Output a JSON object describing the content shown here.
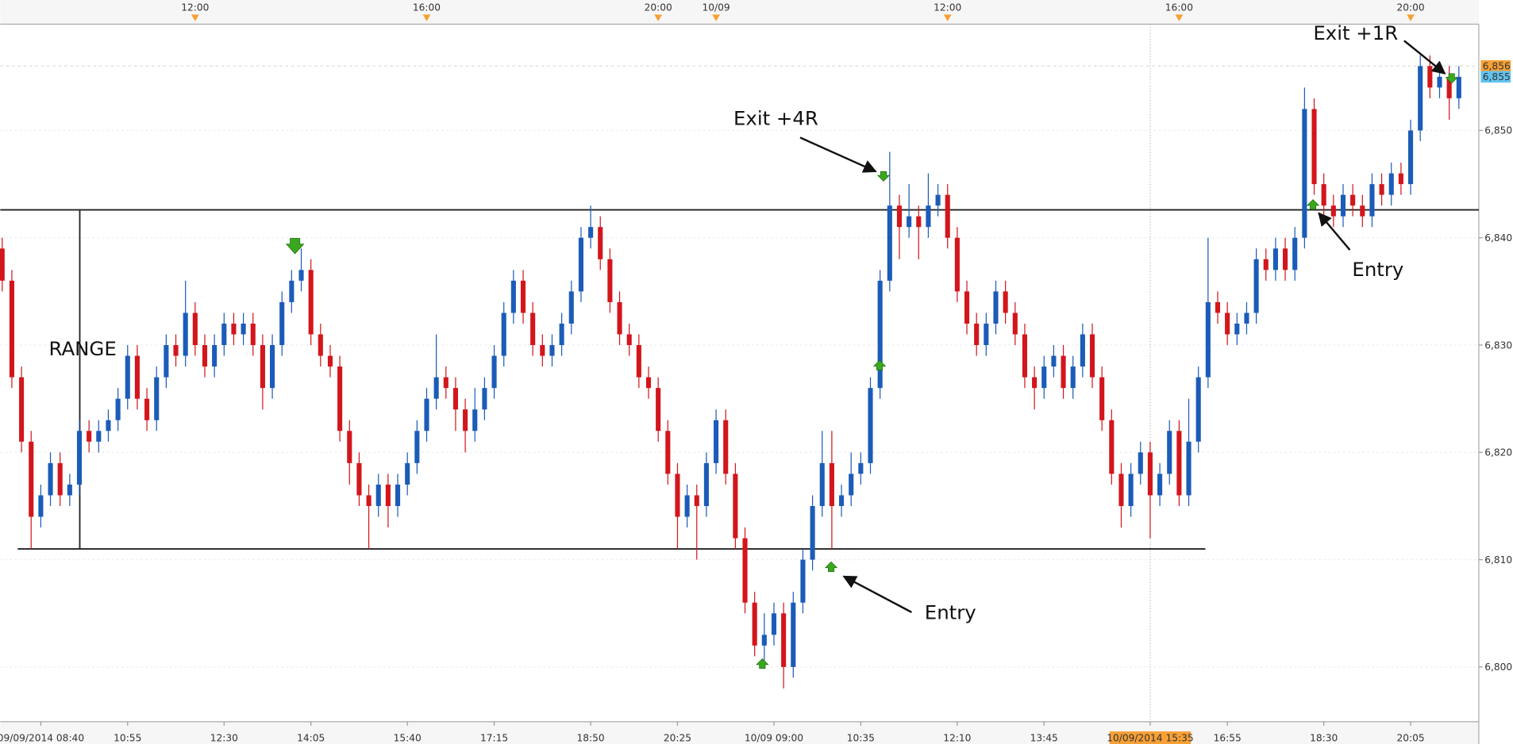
{
  "chart_data": {
    "type": "candlestick",
    "open": [
      6839,
      6836,
      6827,
      6821,
      6814,
      6816,
      6819,
      6816,
      6817,
      6822,
      6821,
      6822,
      6823,
      6825,
      6829,
      6825,
      6823,
      6827,
      6830,
      6829,
      6833,
      6830,
      6828,
      6830,
      6832,
      6831,
      6832,
      6830,
      6826,
      6830,
      6834,
      6836,
      6837,
      6831,
      6829,
      6828,
      6822,
      6819,
      6816,
      6815,
      6817,
      6815,
      6817,
      6819,
      6822,
      6825,
      6827,
      6826,
      6824,
      6822,
      6824,
      6826,
      6829,
      6833,
      6836,
      6833,
      6830,
      6829,
      6830,
      6832,
      6835,
      6840,
      6841,
      6838,
      6834,
      6831,
      6830,
      6827,
      6826,
      6822,
      6818,
      6814,
      6816,
      6815,
      6819,
      6823,
      6818,
      6812,
      6806,
      6802,
      6803,
      6805,
      6800,
      6806,
      6810,
      6815,
      6819,
      6815,
      6816,
      6818,
      6819,
      6826,
      6836,
      6843,
      6841,
      6842,
      6841,
      6843,
      6844,
      6840,
      6835,
      6832,
      6830,
      6832,
      6835,
      6833,
      6831,
      6827,
      6826,
      6828,
      6829,
      6826,
      6828,
      6831,
      6827,
      6823,
      6818,
      6815,
      6818,
      6820,
      6816,
      6818,
      6822,
      6816,
      6821,
      6827,
      6834,
      6833,
      6831,
      6832,
      6833,
      6838,
      6837,
      6839,
      6837,
      6840,
      6852,
      6845,
      6843,
      6842,
      6844,
      6843,
      6842,
      6845,
      6844,
      6846,
      6845,
      6850,
      6856,
      6854,
      6855,
      6853
    ],
    "high": [
      6840,
      6837,
      6828,
      6822,
      6817,
      6820,
      6820,
      6818,
      6823,
      6823,
      6823,
      6824,
      6826,
      6830,
      6830,
      6826,
      6828,
      6831,
      6831,
      6836,
      6834,
      6831,
      6831,
      6833,
      6833,
      6833,
      6833,
      6831,
      6831,
      6835,
      6837,
      6839,
      6838,
      6832,
      6830,
      6829,
      6823,
      6820,
      6817,
      6818,
      6818,
      6818,
      6820,
      6823,
      6826,
      6831,
      6828,
      6827,
      6825,
      6826,
      6827,
      6830,
      6834,
      6837,
      6837,
      6834,
      6831,
      6831,
      6833,
      6836,
      6841,
      6843,
      6842,
      6839,
      6835,
      6832,
      6831,
      6828,
      6827,
      6823,
      6819,
      6817,
      6817,
      6820,
      6824,
      6824,
      6819,
      6813,
      6807,
      6805,
      6806,
      6806,
      6807,
      6811,
      6816,
      6822,
      6822,
      6817,
      6820,
      6820,
      6827,
      6837,
      6848,
      6844,
      6845,
      6843,
      6846,
      6845,
      6845,
      6841,
      6836,
      6833,
      6833,
      6836,
      6836,
      6834,
      6832,
      6828,
      6829,
      6830,
      6830,
      6829,
      6832,
      6832,
      6828,
      6824,
      6819,
      6819,
      6821,
      6821,
      6819,
      6823,
      6823,
      6825,
      6828,
      6840,
      6835,
      6834,
      6833,
      6834,
      6839,
      6839,
      6840,
      6840,
      6841,
      6854,
      6853,
      6846,
      6844,
      6845,
      6845,
      6844,
      6846,
      6846,
      6847,
      6847,
      6851,
      6857,
      6857,
      6856,
      6856,
      6856
    ],
    "low": [
      6835,
      6826,
      6820,
      6811,
      6813,
      6815,
      6815,
      6815,
      6816,
      6820,
      6820,
      6821,
      6822,
      6824,
      6824,
      6822,
      6822,
      6826,
      6828,
      6828,
      6829,
      6827,
      6827,
      6829,
      6830,
      6830,
      6829,
      6824,
      6825,
      6829,
      6833,
      6835,
      6830,
      6828,
      6827,
      6821,
      6817,
      6815,
      6811,
      6814,
      6813,
      6814,
      6816,
      6818,
      6821,
      6824,
      6825,
      6822,
      6820,
      6821,
      6823,
      6825,
      6828,
      6832,
      6832,
      6829,
      6828,
      6828,
      6829,
      6831,
      6834,
      6839,
      6837,
      6833,
      6830,
      6829,
      6826,
      6825,
      6821,
      6817,
      6811,
      6813,
      6810,
      6814,
      6818,
      6817,
      6811,
      6805,
      6801,
      6800,
      6802,
      6798,
      6799,
      6805,
      6809,
      6814,
      6811,
      6814,
      6815,
      6817,
      6818,
      6825,
      6835,
      6838,
      6840,
      6838,
      6840,
      6842,
      6839,
      6834,
      6831,
      6829,
      6829,
      6831,
      6832,
      6830,
      6826,
      6824,
      6825,
      6827,
      6825,
      6825,
      6827,
      6826,
      6822,
      6817,
      6813,
      6814,
      6817,
      6812,
      6815,
      6817,
      6815,
      6815,
      6820,
      6826,
      6832,
      6830,
      6830,
      6831,
      6832,
      6836,
      6836,
      6836,
      6836,
      6839,
      6844,
      6842,
      6841,
      6841,
      6842,
      6841,
      6841,
      6843,
      6843,
      6844,
      6844,
      6849,
      6853,
      6853,
      6851,
      6852
    ],
    "close": [
      6836,
      6827,
      6821,
      6814,
      6816,
      6819,
      6816,
      6817,
      6822,
      6821,
      6822,
      6823,
      6825,
      6829,
      6825,
      6823,
      6827,
      6830,
      6829,
      6833,
      6830,
      6828,
      6830,
      6832,
      6831,
      6832,
      6830,
      6826,
      6830,
      6834,
      6836,
      6837,
      6831,
      6829,
      6828,
      6822,
      6819,
      6816,
      6815,
      6817,
      6815,
      6817,
      6819,
      6822,
      6825,
      6827,
      6826,
      6824,
      6822,
      6824,
      6826,
      6829,
      6833,
      6836,
      6833,
      6830,
      6829,
      6830,
      6832,
      6835,
      6840,
      6841,
      6838,
      6834,
      6831,
      6830,
      6827,
      6826,
      6822,
      6818,
      6814,
      6816,
      6815,
      6819,
      6823,
      6818,
      6812,
      6806,
      6802,
      6803,
      6805,
      6800,
      6806,
      6810,
      6815,
      6819,
      6815,
      6816,
      6818,
      6819,
      6826,
      6836,
      6843,
      6841,
      6842,
      6841,
      6843,
      6844,
      6840,
      6835,
      6832,
      6830,
      6832,
      6835,
      6833,
      6831,
      6827,
      6826,
      6828,
      6829,
      6826,
      6828,
      6831,
      6827,
      6823,
      6818,
      6815,
      6818,
      6820,
      6816,
      6818,
      6822,
      6816,
      6821,
      6827,
      6834,
      6833,
      6831,
      6832,
      6833,
      6838,
      6837,
      6839,
      6837,
      6840,
      6852,
      6845,
      6843,
      6842,
      6844,
      6843,
      6842,
      6845,
      6844,
      6846,
      6845,
      6850,
      6856,
      6854,
      6855,
      6853,
      6855
    ],
    "categories": [
      null,
      null,
      null,
      null,
      "09/09/2014 08:40",
      null,
      null,
      null,
      null,
      null,
      null,
      null,
      null,
      "10:55",
      null,
      null,
      null,
      null,
      null,
      null,
      null,
      null,
      null,
      "12:30",
      null,
      null,
      null,
      null,
      null,
      null,
      null,
      null,
      "14:05",
      null,
      null,
      null,
      null,
      null,
      null,
      null,
      null,
      null,
      "15:40",
      null,
      null,
      null,
      null,
      null,
      null,
      null,
      null,
      "17:15",
      null,
      null,
      null,
      null,
      null,
      null,
      null,
      null,
      null,
      "18:50",
      null,
      null,
      null,
      null,
      null,
      null,
      null,
      null,
      "20:25",
      null,
      null,
      null,
      null,
      null,
      null,
      null,
      null,
      null,
      "10/09 09:00",
      null,
      null,
      null,
      null,
      null,
      null,
      null,
      null,
      "10:35",
      null,
      null,
      null,
      null,
      null,
      null,
      null,
      null,
      null,
      "12:10",
      null,
      null,
      null,
      null,
      null,
      null,
      null,
      null,
      "13:45",
      null,
      null,
      null,
      null,
      null,
      null,
      null,
      null,
      null,
      null,
      {
        "label": "10/09/2014 15:35",
        "crosshair": true
      },
      null,
      null,
      null,
      null,
      null,
      null,
      null,
      "16:55",
      null,
      null,
      null,
      null,
      null,
      null,
      null,
      null,
      null,
      "18:30",
      null,
      null,
      null,
      null,
      null,
      null,
      null,
      null,
      "20:05",
      null,
      null,
      null,
      null,
      null
    ],
    "top_categories": [
      null,
      null,
      null,
      null,
      null,
      null,
      null,
      null,
      null,
      null,
      null,
      null,
      null,
      null,
      null,
      null,
      null,
      null,
      null,
      null,
      "12:00",
      null,
      null,
      null,
      null,
      null,
      null,
      null,
      null,
      null,
      null,
      null,
      null,
      null,
      null,
      null,
      null,
      null,
      null,
      null,
      null,
      null,
      null,
      null,
      "16:00",
      null,
      null,
      null,
      null,
      null,
      null,
      null,
      null,
      null,
      null,
      null,
      null,
      null,
      null,
      null,
      null,
      null,
      null,
      null,
      null,
      null,
      null,
      null,
      "20:00",
      null,
      null,
      null,
      null,
      null,
      "10/09",
      null,
      null,
      null,
      null,
      null,
      null,
      null,
      null,
      null,
      null,
      null,
      null,
      null,
      null,
      null,
      null,
      null,
      null,
      null,
      null,
      null,
      null,
      null,
      "12:00",
      null,
      null,
      null,
      null,
      null,
      null,
      null,
      null,
      null,
      null,
      null,
      null,
      null,
      null,
      null,
      null,
      null,
      null,
      null,
      null,
      null,
      null,
      null,
      "16:00",
      null,
      null,
      null,
      null,
      null,
      null,
      null,
      null,
      null,
      null,
      null,
      null,
      null,
      null,
      null,
      null,
      null,
      null,
      null,
      null,
      null,
      null,
      null,
      "20:00",
      null,
      null,
      null,
      null,
      null
    ],
    "up_color": "#1b5cb8",
    "down_color": "#d2161c",
    "ylim": [
      6794.9,
      6859.9
    ],
    "yticks": [
      {
        "value": 6800,
        "label": "6,800"
      },
      {
        "value": 6810,
        "label": "6,810"
      },
      {
        "value": 6820,
        "label": "6,820"
      },
      {
        "value": 6830,
        "label": "6,830"
      },
      {
        "value": 6840,
        "label": "6,840"
      },
      {
        "value": 6850,
        "label": "6,850"
      }
    ],
    "range": {
      "high": 6842.6,
      "low": 6811
    },
    "price_markers": [
      {
        "value": 6856,
        "label": "6,856",
        "color": "#f7a035"
      },
      {
        "value": 6855,
        "label": "6,855",
        "color": "#62c3f0"
      }
    ],
    "annotations": [
      {
        "text": "RANGE"
      },
      {
        "text": "Exit +4R"
      },
      {
        "text": "Entry"
      },
      {
        "text": "Entry"
      },
      {
        "text": "Exit +1R"
      }
    ]
  }
}
